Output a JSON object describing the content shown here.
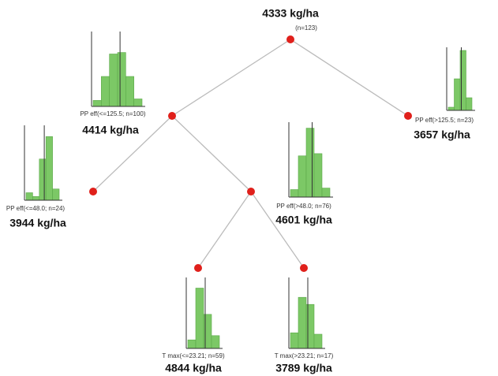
{
  "nodes": [
    {
      "label": "4333 kg/ha",
      "condition": "(n=123)"
    },
    {
      "label": "4414 kg/ha",
      "condition": "PP eff(<=125.5; n=100)",
      "histogram": [
        8,
        40,
        70,
        72,
        40,
        10
      ]
    },
    {
      "label": "3657 kg/ha",
      "condition": "PP eff(>125.5; n=23)",
      "histogram": [
        5,
        50,
        95,
        20
      ]
    },
    {
      "label": "3944 kg/ha",
      "condition": "PP eff(<=48.0; n=24)",
      "histogram": [
        10,
        5,
        55,
        85,
        15
      ]
    },
    {
      "label": "4601 kg/ha",
      "condition": "PP eff(>48.0; n=76)",
      "histogram": [
        10,
        55,
        92,
        58,
        12
      ]
    },
    {
      "label": "4844 kg/ha",
      "condition": "T max(<=23.21; n=59)",
      "histogram": [
        12,
        85,
        48,
        18
      ]
    },
    {
      "label": "3789 kg/ha",
      "condition": "T max(>23.21; n=17)",
      "histogram": [
        22,
        72,
        62,
        20
      ]
    }
  ]
}
